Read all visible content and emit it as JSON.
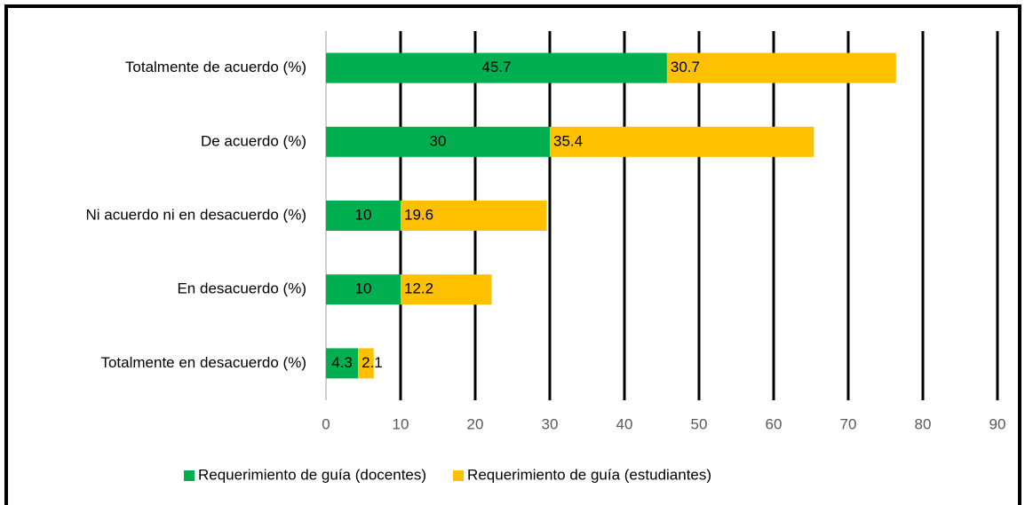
{
  "chart_data": {
    "type": "stacked_barh",
    "categories": [
      "Totalmente de acuerdo (%)",
      "De acuerdo (%)",
      "Ni acuerdo ni en desacuerdo (%)",
      "En desacuerdo (%)",
      "Totalmente en desacuerdo (%)"
    ],
    "series": [
      {
        "name": "Requerimiento de guía (docentes)",
        "color": "#00b050",
        "values": [
          45.7,
          30,
          10,
          10,
          4.3
        ]
      },
      {
        "name": "Requerimiento de guía (estudiantes)",
        "color": "#ffc000",
        "values": [
          30.7,
          35.4,
          19.6,
          12.2,
          2.1
        ]
      }
    ],
    "xlim": [
      0,
      90
    ],
    "xticks": [
      0,
      10,
      20,
      30,
      40,
      50,
      60,
      70,
      80,
      90
    ],
    "grid": true,
    "legend": "bottom"
  }
}
